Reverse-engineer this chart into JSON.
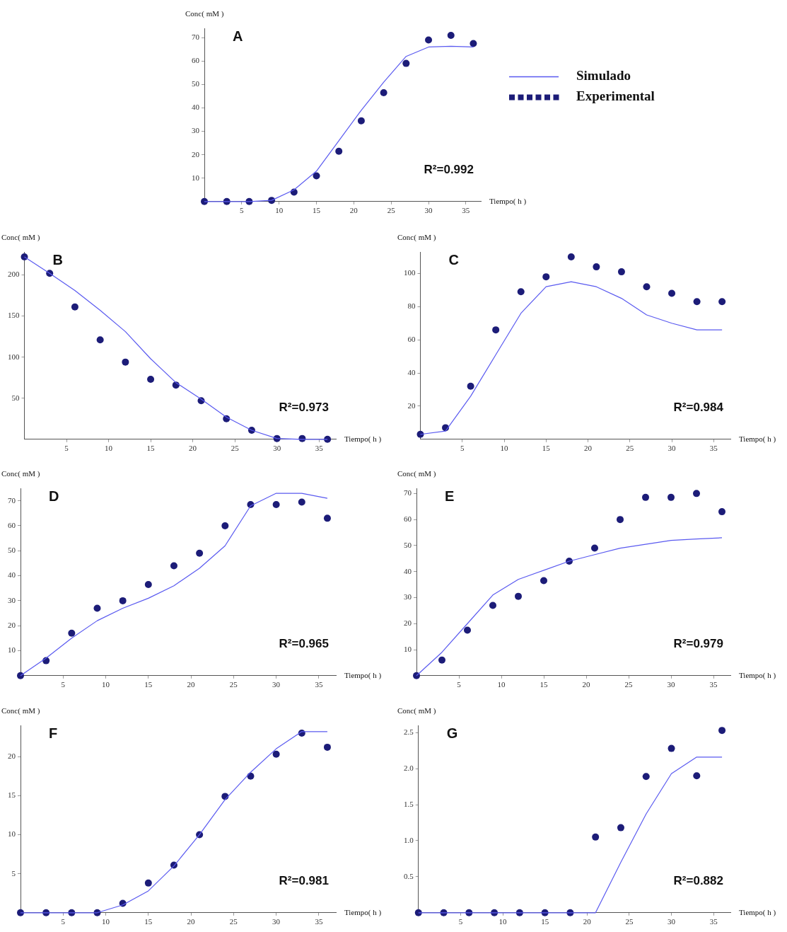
{
  "chart_data": [
    {
      "type": "line",
      "title": "A",
      "xlabel": "Tiempo( h )",
      "ylabel": "Conc( mM )",
      "x": [
        0,
        3,
        6,
        9,
        12,
        15,
        18,
        21,
        24,
        27,
        30,
        33,
        36
      ],
      "xlim": [
        0,
        37
      ],
      "xticks": [
        5,
        10,
        15,
        20,
        25,
        30,
        35
      ],
      "ylim": [
        0,
        74
      ],
      "yticks": [
        10,
        20,
        30,
        40,
        50,
        60,
        70
      ],
      "legend": "right",
      "annotations": [
        "R²=0.992"
      ],
      "series": [
        {
          "name": "Simulado",
          "type": "line",
          "color": "#5a5af0",
          "values": [
            0,
            0,
            0,
            0.5,
            5,
            13,
            26,
            39,
            51,
            62,
            66,
            66.3,
            66
          ]
        },
        {
          "name": "Experimental",
          "type": "scatter",
          "marker": "circle",
          "color": "#1c1c78",
          "values": [
            0,
            0,
            0,
            0.5,
            4,
            11,
            21.5,
            34.5,
            46.5,
            59,
            69,
            71,
            67.5
          ]
        }
      ]
    },
    {
      "type": "line",
      "title": "B",
      "xlabel": "Tiempo( h )",
      "ylabel": "Conc( mM )",
      "x": [
        0,
        3,
        6,
        9,
        12,
        15,
        18,
        21,
        24,
        27,
        30,
        33,
        36
      ],
      "xlim": [
        0,
        37
      ],
      "xticks": [
        5,
        10,
        15,
        20,
        25,
        30,
        35
      ],
      "ylim": [
        0,
        228
      ],
      "yticks": [
        50,
        100,
        150,
        200
      ],
      "annotations": [
        "R²=0.973"
      ],
      "series": [
        {
          "type": "line",
          "color": "#5a5af0",
          "values": [
            222,
            202,
            181,
            157,
            131,
            98,
            69,
            49,
            27,
            11,
            1,
            0,
            0
          ]
        },
        {
          "type": "scatter",
          "marker": "circle",
          "color": "#1c1c78",
          "values": [
            222,
            202,
            161,
            121,
            94,
            73,
            66,
            47,
            25,
            11,
            1,
            1,
            0
          ]
        }
      ]
    },
    {
      "type": "line",
      "title": "C",
      "xlabel": "Tiempo( h )",
      "ylabel": "Conc( mM )",
      "x": [
        0,
        3,
        6,
        9,
        12,
        15,
        18,
        21,
        24,
        27,
        30,
        33,
        36
      ],
      "xlim": [
        0,
        37
      ],
      "xticks": [
        5,
        10,
        15,
        20,
        25,
        30,
        35
      ],
      "ylim": [
        0,
        113
      ],
      "yticks": [
        20,
        40,
        60,
        80,
        100
      ],
      "annotations": [
        "R²=0.984"
      ],
      "series": [
        {
          "type": "line",
          "color": "#5a5af0",
          "values": [
            3,
            5,
            26,
            51,
            76,
            92,
            95,
            92,
            85,
            75,
            70,
            66,
            66
          ]
        },
        {
          "type": "scatter",
          "marker": "circle",
          "color": "#1c1c78",
          "values": [
            3,
            7,
            32,
            66,
            89,
            98,
            110,
            104,
            101,
            92,
            88,
            83,
            83
          ]
        }
      ]
    },
    {
      "type": "line",
      "title": "D",
      "xlabel": "Tiempo( h )",
      "ylabel": "Conc( mM )",
      "x": [
        0,
        3,
        6,
        9,
        12,
        15,
        18,
        21,
        24,
        27,
        30,
        33,
        36
      ],
      "xlim": [
        0,
        37
      ],
      "xticks": [
        5,
        10,
        15,
        20,
        25,
        30,
        35
      ],
      "ylim": [
        0,
        75
      ],
      "yticks": [
        10,
        20,
        30,
        40,
        50,
        60,
        70
      ],
      "annotations": [
        "R²=0.965"
      ],
      "series": [
        {
          "type": "line",
          "color": "#5a5af0",
          "values": [
            0,
            7,
            15,
            22,
            27,
            31,
            36,
            43,
            52,
            68,
            73,
            73,
            71
          ]
        },
        {
          "type": "scatter",
          "marker": "circle",
          "color": "#1c1c78",
          "values": [
            0,
            6,
            17,
            27,
            30,
            36.5,
            44,
            49,
            60,
            68.5,
            68.5,
            69.5,
            63
          ]
        }
      ]
    },
    {
      "type": "line",
      "title": "E",
      "xlabel": "Tiempo( h )",
      "ylabel": "Conc( mM )",
      "x": [
        0,
        3,
        6,
        9,
        12,
        15,
        18,
        21,
        24,
        27,
        30,
        33,
        36
      ],
      "xlim": [
        0,
        37
      ],
      "xticks": [
        5,
        10,
        15,
        20,
        25,
        30,
        35
      ],
      "ylim": [
        0,
        72
      ],
      "yticks": [
        10,
        20,
        30,
        40,
        50,
        60,
        70
      ],
      "annotations": [
        "R²=0.979"
      ],
      "series": [
        {
          "type": "line",
          "color": "#5a5af0",
          "values": [
            0,
            9,
            20,
            31,
            37,
            40.5,
            44,
            46.5,
            49,
            50.5,
            52,
            52.5,
            53
          ]
        },
        {
          "type": "scatter",
          "marker": "circle",
          "color": "#1c1c78",
          "values": [
            0,
            6,
            17.5,
            27,
            30.5,
            36.5,
            44,
            49,
            60,
            68.5,
            68.5,
            70,
            63
          ]
        }
      ]
    },
    {
      "type": "line",
      "title": "F",
      "xlabel": "Tiempo( h )",
      "ylabel": "Conc( mM )",
      "x": [
        0,
        3,
        6,
        9,
        12,
        15,
        18,
        21,
        24,
        27,
        30,
        33,
        36
      ],
      "xlim": [
        0,
        37
      ],
      "xticks": [
        5,
        10,
        15,
        20,
        25,
        30,
        35
      ],
      "ylim": [
        0,
        24
      ],
      "yticks": [
        5,
        10,
        15,
        20
      ],
      "annotations": [
        "R²=0.981"
      ],
      "series": [
        {
          "type": "line",
          "color": "#5a5af0",
          "values": [
            0,
            0,
            0,
            0,
            1,
            2.8,
            6,
            10,
            14.5,
            18,
            21,
            23.2,
            23.2
          ]
        },
        {
          "type": "scatter",
          "marker": "circle",
          "color": "#1c1c78",
          "values": [
            0,
            0,
            0,
            0,
            1.2,
            3.8,
            6.1,
            10,
            14.9,
            17.5,
            20.3,
            23,
            21.2
          ]
        }
      ]
    },
    {
      "type": "line",
      "title": "G",
      "xlabel": "Tiempo( h )",
      "ylabel": "Conc( mM )",
      "x": [
        0,
        3,
        6,
        9,
        12,
        15,
        18,
        21,
        24,
        27,
        30,
        33,
        36
      ],
      "xlim": [
        0,
        37
      ],
      "xticks": [
        5,
        10,
        15,
        20,
        25,
        30,
        35
      ],
      "ylim": [
        0,
        2.6
      ],
      "yticks": [
        0.5,
        {
          "value": 1,
          "label": "1.0"
        },
        1.5,
        {
          "value": 2,
          "label": "2.0"
        },
        2.5
      ],
      "annotations": [
        "R²=0.882"
      ],
      "series": [
        {
          "type": "line",
          "color": "#5a5af0",
          "values": [
            0,
            0,
            0,
            0,
            0,
            0,
            0,
            0,
            0.7,
            1.37,
            1.93,
            2.16,
            2.16
          ]
        },
        {
          "type": "scatter",
          "marker": "circle",
          "color": "#1c1c78",
          "values": [
            0,
            0,
            0,
            0,
            0,
            0,
            0,
            1.05,
            1.18,
            1.89,
            2.28,
            1.9,
            2.53
          ]
        }
      ]
    }
  ]
}
